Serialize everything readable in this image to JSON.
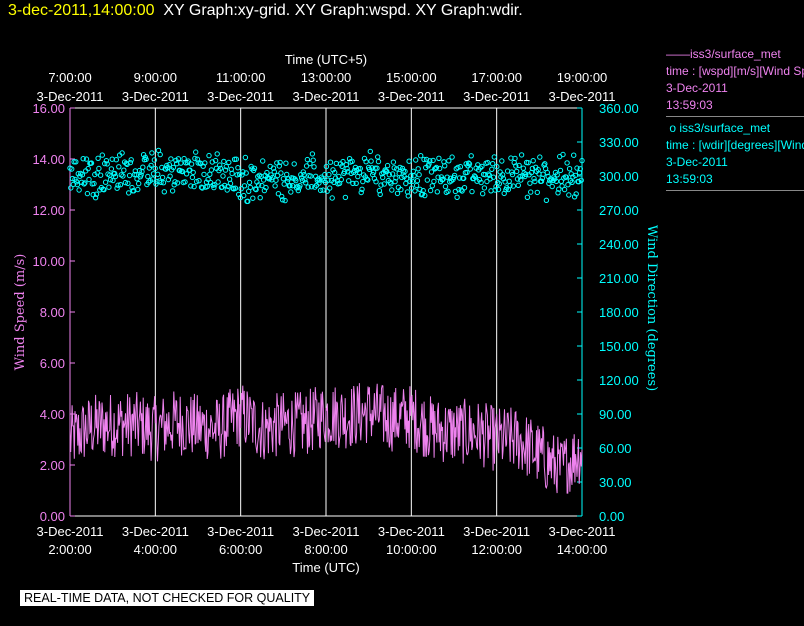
{
  "header": {
    "datetime": "3-dec-2011,14:00:00",
    "titles": "XY Graph:xy-grid.  XY Graph:wspd.  XY Graph:wdir."
  },
  "legend": [
    {
      "symbol": "——",
      "name": "iss3/surface_met",
      "expr": "time : [wspd][m/s][Wind Speed]",
      "date": "3-Dec-2011",
      "time": "13:59:03",
      "color": "#ee82ee"
    },
    {
      "symbol": "o",
      "name": "iss3/surface_met",
      "expr": "time : [wdir][degrees][Wind Direction]",
      "date": "3-Dec-2011",
      "time": "13:59:03",
      "color": "#00ffff"
    }
  ],
  "footer": "REAL-TIME DATA, NOT CHECKED FOR QUALITY",
  "chart_data": {
    "type": "line",
    "top_axis_title": "Time (UTC+5)",
    "xlabel": "Time (UTC)",
    "ylabel_left": "Wind Speed (m/s)",
    "ylabel_right": "Wind Direction (degrees)",
    "top_ticks": [
      {
        "time": "7:00:00",
        "date": "3-Dec-2011"
      },
      {
        "time": "9:00:00",
        "date": "3-Dec-2011"
      },
      {
        "time": "11:00:00",
        "date": "3-Dec-2011"
      },
      {
        "time": "13:00:00",
        "date": "3-Dec-2011"
      },
      {
        "time": "15:00:00",
        "date": "3-Dec-2011"
      },
      {
        "time": "17:00:00",
        "date": "3-Dec-2011"
      },
      {
        "time": "19:00:00",
        "date": "3-Dec-2011"
      }
    ],
    "bottom_ticks": [
      {
        "time": "2:00:00",
        "date": "3-Dec-2011"
      },
      {
        "time": "4:00:00",
        "date": "3-Dec-2011"
      },
      {
        "time": "6:00:00",
        "date": "3-Dec-2011"
      },
      {
        "time": "8:00:00",
        "date": "3-Dec-2011"
      },
      {
        "time": "10:00:00",
        "date": "3-Dec-2011"
      },
      {
        "time": "12:00:00",
        "date": "3-Dec-2011"
      },
      {
        "time": "14:00:00",
        "date": "3-Dec-2011"
      }
    ],
    "x_range_hours_utc": [
      2,
      14
    ],
    "y_left_ticks": [
      "0.00",
      "2.00",
      "4.00",
      "6.00",
      "8.00",
      "10.00",
      "12.00",
      "14.00",
      "16.00"
    ],
    "y_left_range": [
      0,
      16
    ],
    "y_right_ticks": [
      "0.00",
      "30.00",
      "60.00",
      "90.00",
      "120.00",
      "150.00",
      "180.00",
      "210.00",
      "240.00",
      "270.00",
      "300.00",
      "330.00",
      "360.00"
    ],
    "y_right_range": [
      0,
      360
    ],
    "grid": "vertical",
    "series": [
      {
        "name": "iss3/surface_met wspd",
        "style": "line",
        "axis": "left",
        "x_hours_utc": [
          2.0,
          2.5,
          3.0,
          3.5,
          4.0,
          4.5,
          5.0,
          5.5,
          6.0,
          6.5,
          7.0,
          7.5,
          8.0,
          8.5,
          9.0,
          9.5,
          10.0,
          10.5,
          11.0,
          11.5,
          12.0,
          12.5,
          13.0,
          13.5,
          14.0
        ],
        "values": [
          3.0,
          3.5,
          3.6,
          3.6,
          3.4,
          3.7,
          3.5,
          3.4,
          4.0,
          3.4,
          3.6,
          3.6,
          4.0,
          3.9,
          4.1,
          3.8,
          3.9,
          3.4,
          3.3,
          3.3,
          3.0,
          3.0,
          2.4,
          1.8,
          2.6
        ]
      },
      {
        "name": "iss3/surface_met wdir",
        "style": "scatter",
        "axis": "right",
        "x_hours_utc": [
          2.0,
          3.0,
          4.0,
          5.0,
          6.0,
          7.0,
          8.0,
          9.0,
          10.0,
          11.0,
          12.0,
          13.0,
          14.0
        ],
        "values": [
          302,
          303,
          302,
          305,
          296,
          299,
          298,
          302,
          300,
          300,
          301,
          299,
          300
        ]
      }
    ]
  }
}
